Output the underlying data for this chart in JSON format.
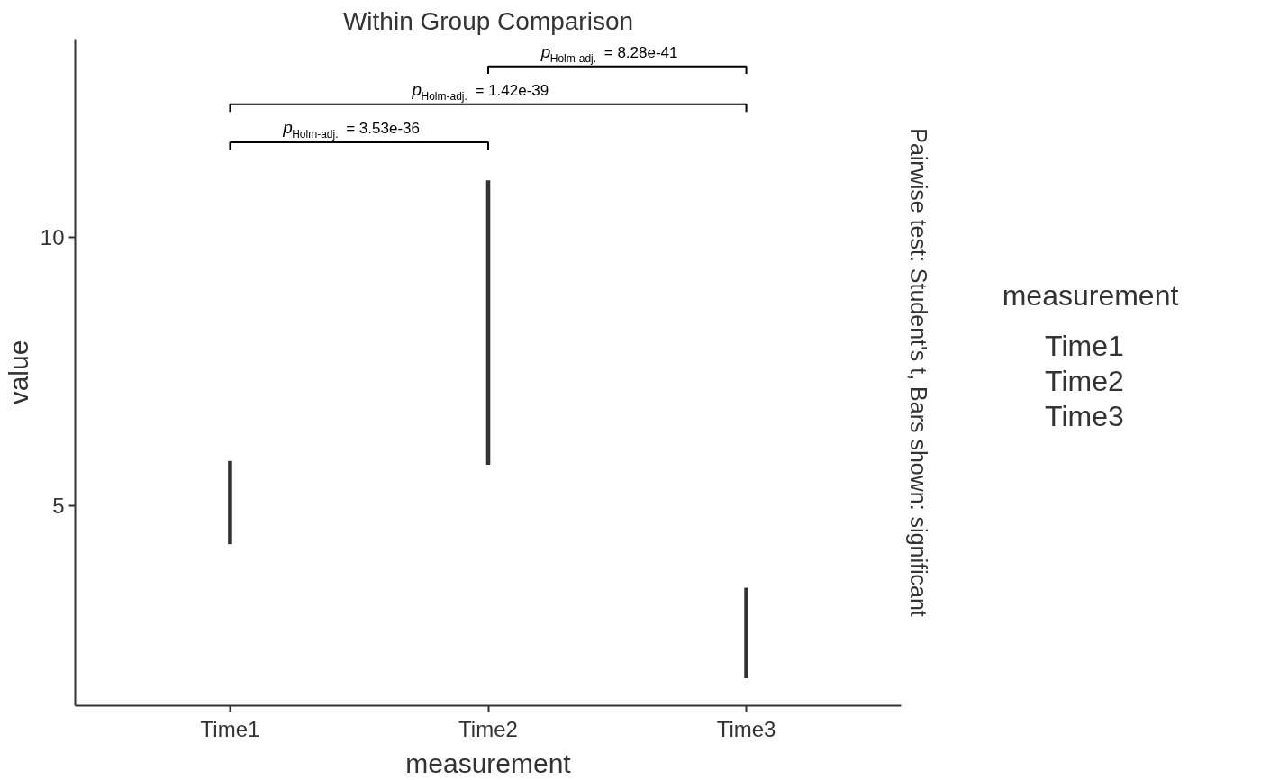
{
  "chart_data": {
    "type": "bar",
    "title": "Within Group Comparison",
    "subtitle": "Pairwise test: Student's t, Bars shown: significant",
    "xlabel": "measurement",
    "ylabel": "value",
    "legend_title": "measurement",
    "categories": [
      "Time1",
      "Time2",
      "Time3"
    ],
    "base": [
      4.28,
      5.76,
      1.78
    ],
    "values": [
      1.55,
      5.3,
      1.69
    ],
    "color": "#333333",
    "ylim": [
      1.27,
      13.69
    ],
    "yticks": [
      5,
      10
    ],
    "grid": false,
    "annotations": [
      "p$_{Holm-adj.}$ = 3.53e-36",
      "p$_{Holm-adj.}$ = 1.42e-39",
      "p$_{Holm-adj.}$ = 8.28e-41"
    ]
  }
}
